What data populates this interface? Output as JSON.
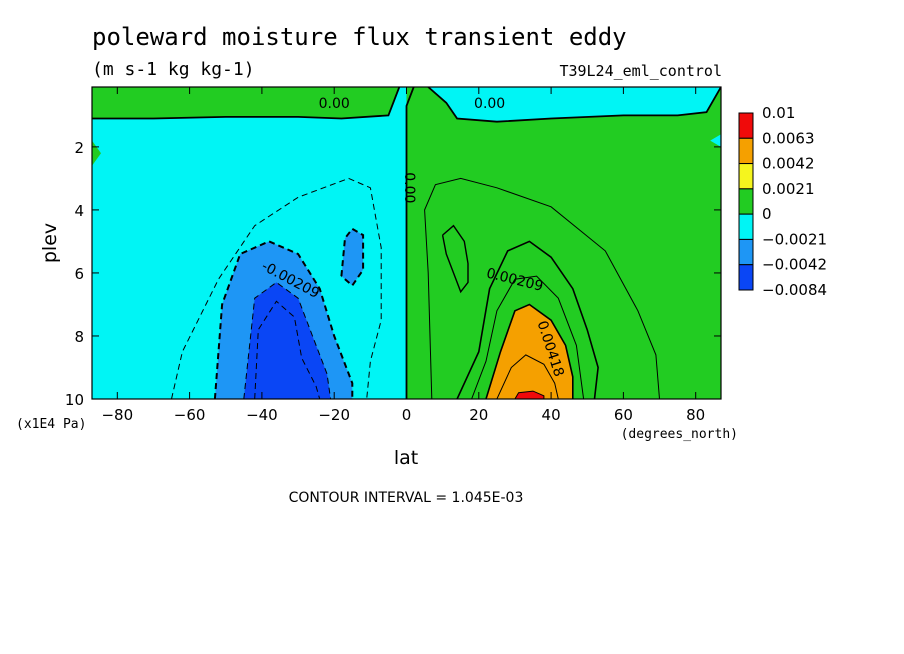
{
  "chart_data": {
    "type": "heatmap",
    "title": "poleward moisture flux transient eddy",
    "subtitle": "(m s-1 kg kg-1)",
    "run_label": "T39L24_eml_control",
    "xlabel": "lat",
    "ylabel": "plev",
    "x_units": "(degrees_north)",
    "y_units": "(x1E4 Pa)",
    "xlim": [
      -87,
      87
    ],
    "ylim": [
      10,
      0.1
    ],
    "x_ticks": [
      -80,
      -60,
      -40,
      -20,
      0,
      20,
      40,
      60,
      80
    ],
    "y_ticks": [
      2,
      4,
      6,
      8,
      10
    ],
    "contour_interval_text": "CONTOUR INTERVAL = 1.045E-03",
    "contour_labels": [
      {
        "text": "0.00",
        "lat": -20,
        "plev": 0.6
      },
      {
        "text": "0.00",
        "lat": 23,
        "plev": 0.6
      },
      {
        "text": "0.00",
        "lat": 1,
        "plev": 3.3
      },
      {
        "text": "-0.00209",
        "lat": -32,
        "plev": 6.2
      },
      {
        "text": "0.00209",
        "lat": 30,
        "plev": 6.2
      },
      {
        "text": "0.00418",
        "lat": 40,
        "plev": 8.4
      }
    ],
    "legend": {
      "labels": [
        "0.01",
        "0.0063",
        "0.0042",
        "0.0021",
        "0",
        "-0.0021",
        "-0.0042",
        "-0.0084"
      ],
      "colors": [
        "#f00a0a",
        "#f5a000",
        "#f5f51e",
        "#22cc22",
        "#00f5f5",
        "#1e96f5",
        "#0a46f5"
      ]
    },
    "regions": [
      {
        "level": 0,
        "points": [
          [
            -87,
            10
          ],
          [
            -87,
            0.1
          ],
          [
            87,
            0.1
          ],
          [
            87,
            10
          ]
        ]
      },
      {
        "level": 1,
        "points": [
          [
            0,
            10
          ],
          [
            0,
            0.1
          ],
          [
            87,
            0.1
          ],
          [
            87,
            10
          ]
        ]
      },
      {
        "level": 1,
        "points": [
          [
            -87,
            0.1
          ],
          [
            -87,
            1.1
          ],
          [
            -70,
            1.1
          ],
          [
            -50,
            1.05
          ],
          [
            -30,
            1.05
          ],
          [
            -18,
            1.1
          ],
          [
            -5,
            1.0
          ],
          [
            -2,
            0.1
          ]
        ]
      },
      {
        "level": 1,
        "points": [
          [
            -87,
            2.6
          ],
          [
            -87,
            1.8
          ],
          [
            -84.5,
            2.2
          ]
        ]
      },
      {
        "level": 0,
        "points": [
          [
            6,
            0.1
          ],
          [
            11,
            0.6
          ],
          [
            14,
            1.1
          ],
          [
            25,
            1.2
          ],
          [
            40,
            1.1
          ],
          [
            60,
            1.0
          ],
          [
            75,
            1.0
          ],
          [
            83,
            0.9
          ],
          [
            87,
            0.1
          ]
        ]
      },
      {
        "level": 0,
        "points": [
          [
            87,
            2.0
          ],
          [
            84,
            1.8
          ],
          [
            87,
            1.6
          ]
        ]
      },
      {
        "level": -1,
        "points": [
          [
            -53,
            10
          ],
          [
            -51,
            7
          ],
          [
            -46,
            5.4
          ],
          [
            -38,
            5.0
          ],
          [
            -30,
            5.4
          ],
          [
            -24,
            6.5
          ],
          [
            -20,
            8
          ],
          [
            -15,
            9.5
          ],
          [
            -15,
            10
          ]
        ]
      },
      {
        "level": -1,
        "points": [
          [
            -18,
            6.1
          ],
          [
            -17,
            4.9
          ],
          [
            -15,
            4.6
          ],
          [
            -12,
            4.8
          ],
          [
            -12,
            5.9
          ],
          [
            -15,
            6.4
          ]
        ]
      },
      {
        "level": -2,
        "points": [
          [
            -45,
            10
          ],
          [
            -42,
            6.8
          ],
          [
            -36,
            6.3
          ],
          [
            -30,
            6.8
          ],
          [
            -26,
            8
          ],
          [
            -22,
            9.2
          ],
          [
            -21,
            10
          ]
        ]
      },
      {
        "level": -3,
        "points": [
          [
            -42,
            10
          ],
          [
            -41,
            7.8
          ],
          [
            -36,
            6.9
          ],
          [
            -31,
            7.4
          ],
          [
            -29,
            8.7
          ],
          [
            -25,
            9.6
          ],
          [
            -24,
            10
          ]
        ]
      },
      {
        "level": 1,
        "points": [
          [
            10,
            4.8
          ],
          [
            13,
            4.5
          ],
          [
            16,
            5.0
          ],
          [
            17,
            5.7
          ],
          [
            17,
            6.3
          ],
          [
            15,
            6.6
          ],
          [
            13,
            6.0
          ],
          [
            11,
            5.4
          ]
        ]
      },
      {
        "level": 1,
        "points": [
          [
            14,
            10
          ],
          [
            20,
            8.5
          ],
          [
            23,
            6.5
          ],
          [
            28,
            5.3
          ],
          [
            34,
            5.0
          ],
          [
            40,
            5.5
          ],
          [
            46,
            6.5
          ],
          [
            50,
            7.8
          ],
          [
            53,
            9.0
          ],
          [
            52,
            10
          ]
        ]
      },
      {
        "level": 2,
        "points": [
          [
            22,
            10
          ],
          [
            26,
            8.5
          ],
          [
            30,
            7.2
          ],
          [
            34,
            7.0
          ],
          [
            40,
            7.5
          ],
          [
            44,
            8.3
          ],
          [
            46,
            9.3
          ],
          [
            46,
            10
          ]
        ]
      },
      {
        "level": 3,
        "points": [
          [
            30,
            10
          ],
          [
            31,
            9.8
          ],
          [
            35,
            9.75
          ],
          [
            38,
            9.9
          ],
          [
            38,
            10
          ]
        ]
      }
    ],
    "contours": [
      {
        "style": "solid",
        "width": 1.8,
        "points": [
          [
            0,
            10
          ],
          [
            0,
            0.7
          ],
          [
            2,
            0.1
          ]
        ]
      },
      {
        "style": "solid",
        "width": 1.8,
        "points": [
          [
            -87,
            1.1
          ],
          [
            -70,
            1.1
          ],
          [
            -50,
            1.05
          ],
          [
            -30,
            1.05
          ],
          [
            -18,
            1.1
          ],
          [
            -5,
            1.0
          ],
          [
            -2,
            0.1
          ]
        ]
      },
      {
        "style": "solid",
        "width": 1.8,
        "points": [
          [
            6,
            0.1
          ],
          [
            11,
            0.6
          ],
          [
            14,
            1.1
          ],
          [
            25,
            1.2
          ],
          [
            40,
            1.1
          ],
          [
            60,
            1.0
          ],
          [
            75,
            1.0
          ],
          [
            83,
            0.9
          ],
          [
            87,
            0.1
          ]
        ]
      },
      {
        "style": "dash",
        "width": 1,
        "points": [
          [
            -65,
            10
          ],
          [
            -62,
            8.5
          ],
          [
            -52,
            6.2
          ],
          [
            -42,
            4.5
          ],
          [
            -30,
            3.6
          ],
          [
            -16,
            3.0
          ],
          [
            -10,
            3.3
          ],
          [
            -7,
            5.2
          ],
          [
            -7,
            7.5
          ],
          [
            -10,
            8.8
          ],
          [
            -11,
            10
          ]
        ]
      },
      {
        "style": "dash",
        "width": 2,
        "points": [
          [
            -53,
            10
          ],
          [
            -51,
            7
          ],
          [
            -46,
            5.4
          ],
          [
            -38,
            5.0
          ],
          [
            -30,
            5.4
          ],
          [
            -24,
            6.5
          ],
          [
            -20,
            8
          ],
          [
            -15,
            9.5
          ],
          [
            -15,
            10
          ]
        ]
      },
      {
        "style": "dash",
        "width": 2,
        "points": [
          [
            -18,
            6.1
          ],
          [
            -17,
            4.9
          ],
          [
            -15,
            4.6
          ],
          [
            -12,
            4.8
          ],
          [
            -12,
            5.9
          ],
          [
            -15,
            6.4
          ],
          [
            -18,
            6.1
          ]
        ]
      },
      {
        "style": "dash",
        "width": 1,
        "points": [
          [
            -45,
            10
          ],
          [
            -42,
            6.8
          ],
          [
            -36,
            6.3
          ],
          [
            -30,
            6.8
          ],
          [
            -26,
            8
          ],
          [
            -22,
            9.2
          ],
          [
            -21,
            10
          ]
        ]
      },
      {
        "style": "dash",
        "width": 1,
        "points": [
          [
            -42,
            10
          ],
          [
            -41,
            7.8
          ],
          [
            -36,
            6.9
          ],
          [
            -31,
            7.4
          ],
          [
            -29,
            8.7
          ],
          [
            -25,
            9.6
          ],
          [
            -24,
            10
          ]
        ]
      },
      {
        "style": "solid",
        "width": 1,
        "points": [
          [
            7,
            10
          ],
          [
            6,
            6
          ],
          [
            5,
            4
          ],
          [
            8,
            3.2
          ],
          [
            15,
            3.0
          ],
          [
            25,
            3.3
          ],
          [
            40,
            3.9
          ],
          [
            55,
            5.3
          ],
          [
            64,
            7.2
          ],
          [
            69,
            8.6
          ],
          [
            70,
            10
          ]
        ]
      },
      {
        "style": "solid",
        "width": 1.4,
        "points": [
          [
            10,
            4.8
          ],
          [
            13,
            4.5
          ],
          [
            16,
            5.0
          ],
          [
            17,
            5.7
          ],
          [
            17,
            6.3
          ],
          [
            15,
            6.6
          ],
          [
            13,
            6.0
          ],
          [
            11,
            5.4
          ],
          [
            10,
            4.8
          ]
        ]
      },
      {
        "style": "solid",
        "width": 1.6,
        "points": [
          [
            14,
            10
          ],
          [
            20,
            8.5
          ],
          [
            23,
            6.5
          ],
          [
            28,
            5.3
          ],
          [
            34,
            5.0
          ],
          [
            40,
            5.5
          ],
          [
            46,
            6.5
          ],
          [
            50,
            7.8
          ],
          [
            53,
            9.0
          ],
          [
            52,
            10
          ]
        ]
      },
      {
        "style": "solid",
        "width": 1,
        "points": [
          [
            18,
            10
          ],
          [
            22,
            8.8
          ],
          [
            25,
            7.2
          ],
          [
            30,
            6.2
          ],
          [
            36,
            6.1
          ],
          [
            42,
            6.8
          ],
          [
            47,
            8.3
          ],
          [
            49,
            10
          ]
        ]
      },
      {
        "style": "solid",
        "width": 1.6,
        "points": [
          [
            22,
            10
          ],
          [
            26,
            8.5
          ],
          [
            30,
            7.2
          ],
          [
            34,
            7.0
          ],
          [
            40,
            7.5
          ],
          [
            44,
            8.3
          ],
          [
            46,
            9.3
          ],
          [
            46,
            10
          ]
        ]
      },
      {
        "style": "solid",
        "width": 1,
        "points": [
          [
            25,
            10
          ],
          [
            29,
            9.0
          ],
          [
            33,
            8.6
          ],
          [
            38,
            8.9
          ],
          [
            41,
            9.5
          ],
          [
            42,
            10
          ]
        ]
      },
      {
        "style": "solid",
        "width": 1,
        "points": [
          [
            30,
            10
          ],
          [
            31,
            9.8
          ],
          [
            35,
            9.75
          ],
          [
            38,
            9.9
          ],
          [
            38,
            10
          ]
        ]
      }
    ]
  }
}
